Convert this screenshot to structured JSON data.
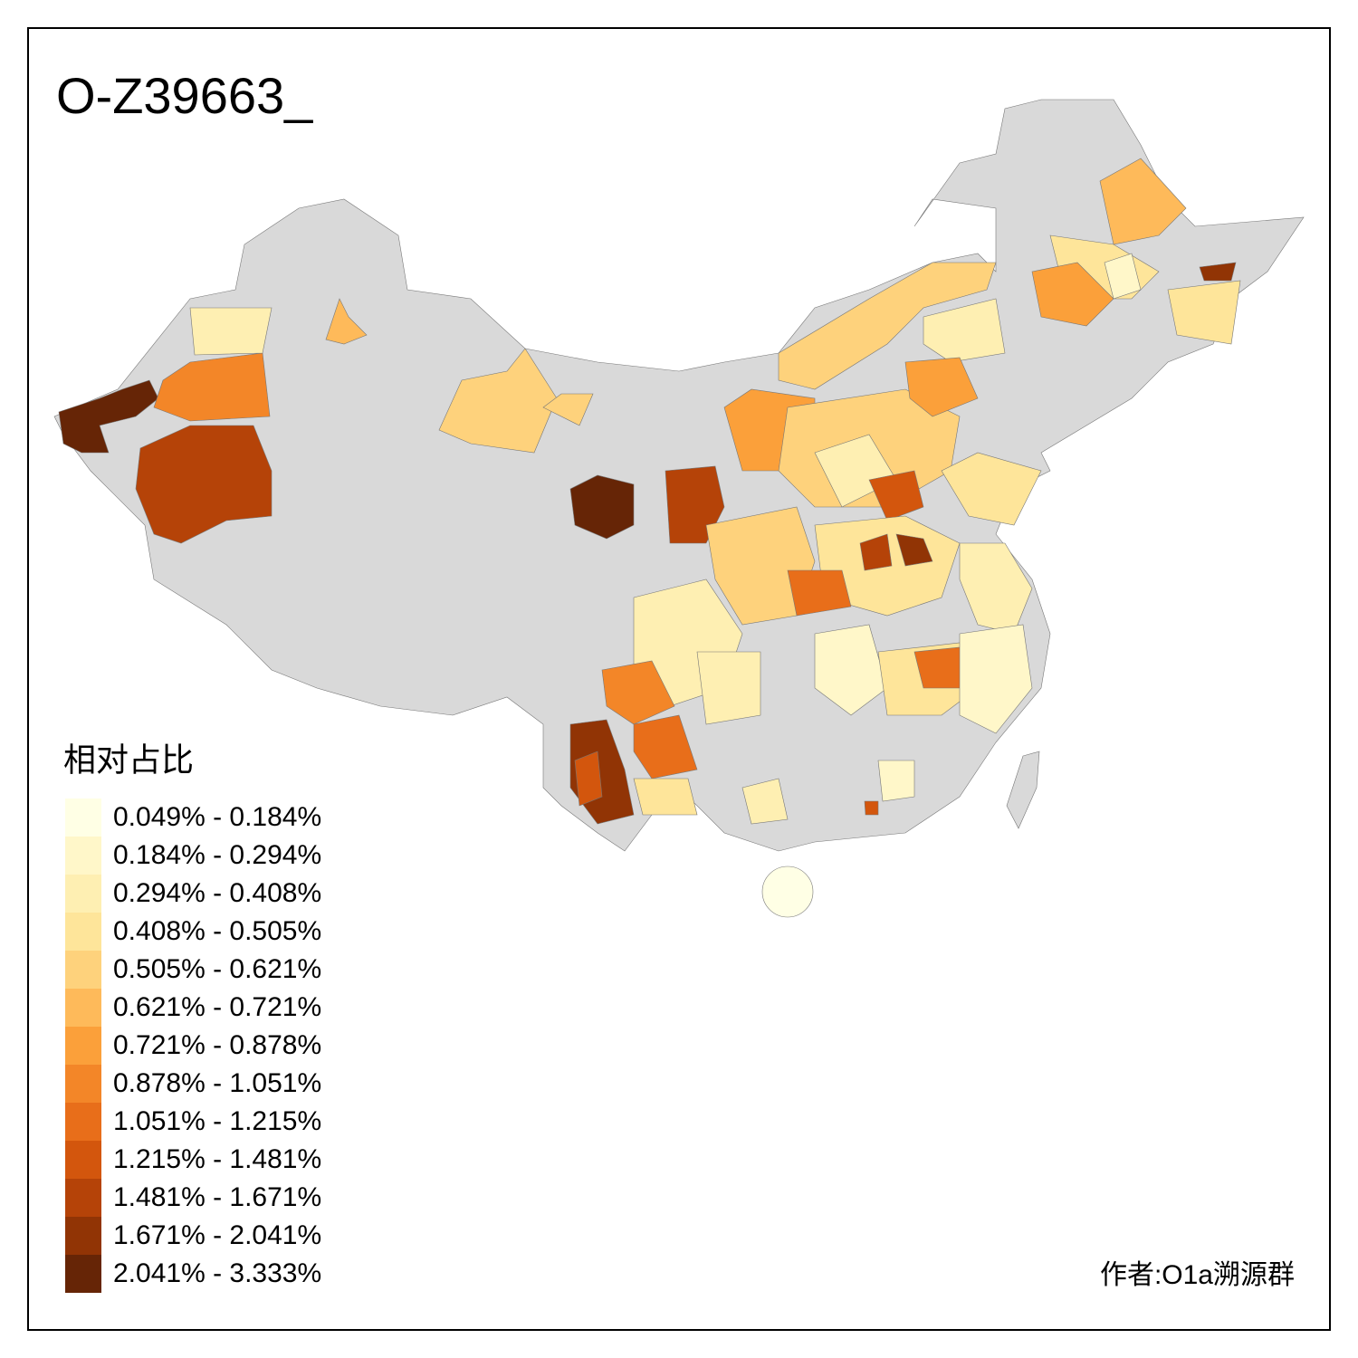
{
  "title": "O-Z39663_",
  "legend": {
    "title": "相对占比",
    "items": [
      {
        "label": "0.049% - 0.184%",
        "color": "#ffffe5"
      },
      {
        "label": "0.184% - 0.294%",
        "color": "#fff7c9"
      },
      {
        "label": "0.294% - 0.408%",
        "color": "#feefb2"
      },
      {
        "label": "0.408% - 0.505%",
        "color": "#fee59a"
      },
      {
        "label": "0.505% - 0.621%",
        "color": "#fed27c"
      },
      {
        "label": "0.621% - 0.721%",
        "color": "#feba5a"
      },
      {
        "label": "0.721% - 0.878%",
        "color": "#fba03a"
      },
      {
        "label": "0.878% - 1.051%",
        "color": "#f38628"
      },
      {
        "label": "1.051% - 1.215%",
        "color": "#e86e1a"
      },
      {
        "label": "1.215% - 1.481%",
        "color": "#d3560d"
      },
      {
        "label": "1.481% - 1.671%",
        "color": "#b54308"
      },
      {
        "label": "1.671% - 2.041%",
        "color": "#913405"
      },
      {
        "label": "2.041% - 3.333%",
        "color": "#662506"
      }
    ]
  },
  "credit": "作者:O1a溯源群"
}
